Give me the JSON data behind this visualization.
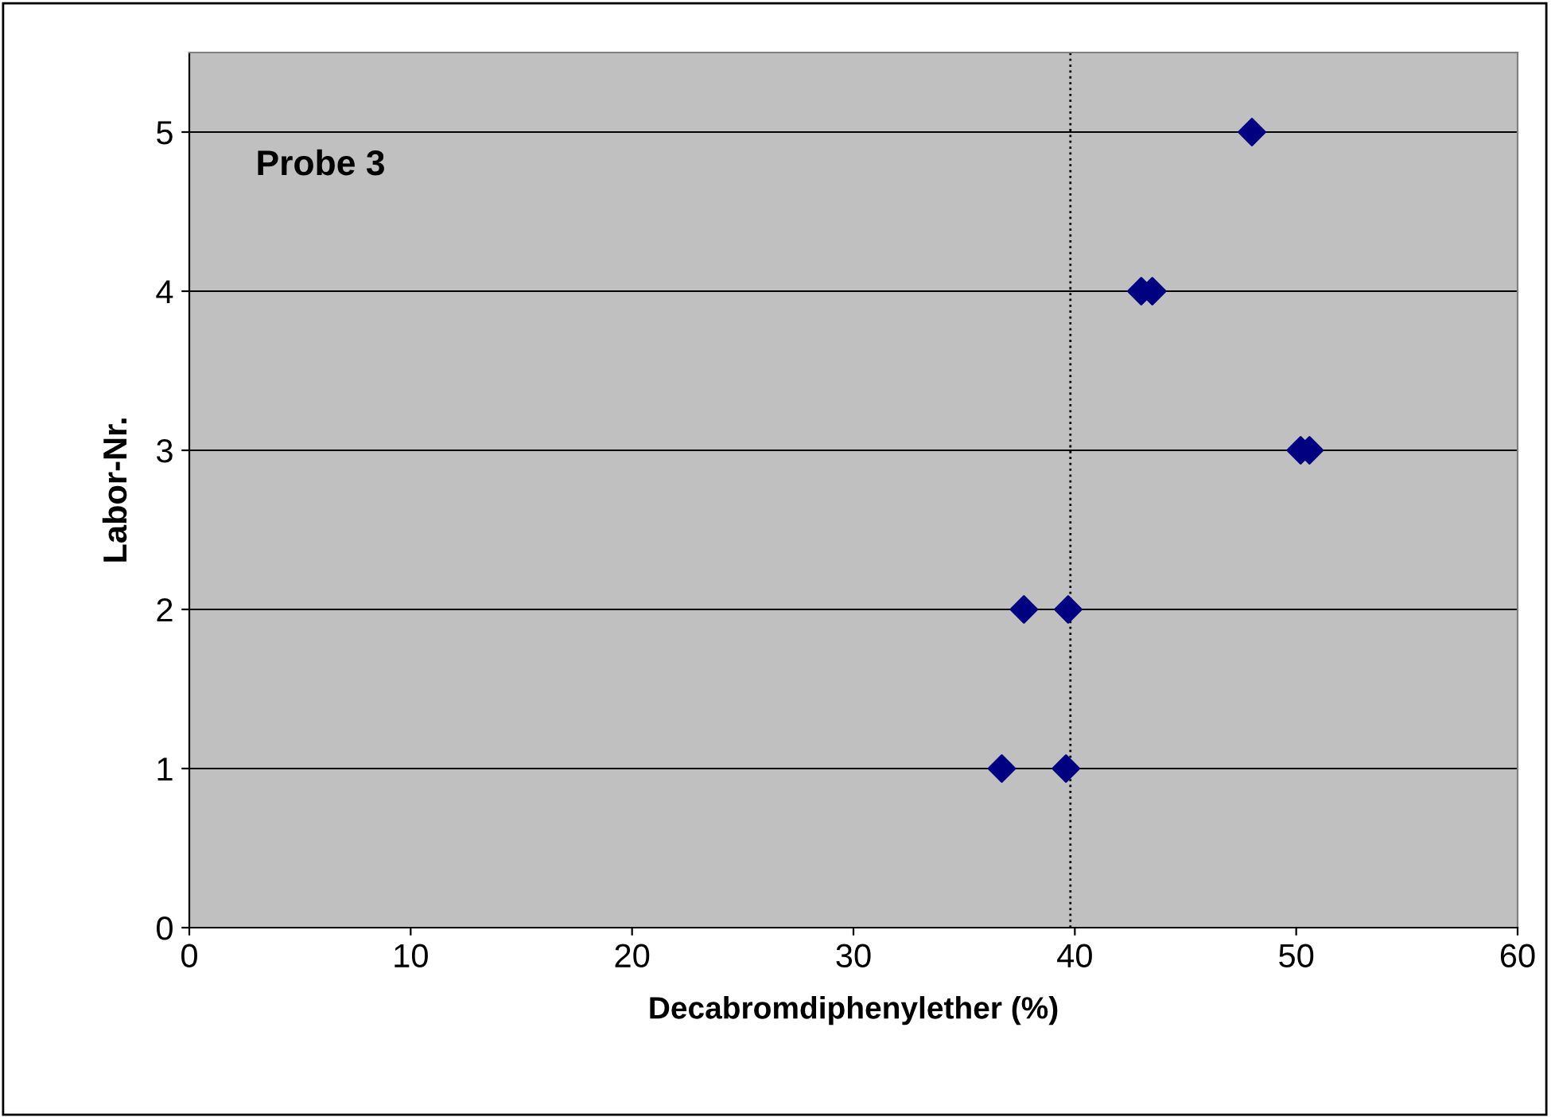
{
  "chart_data": {
    "type": "scatter",
    "xlabel": "Decabromdiphenylether (%)",
    "ylabel": "Labor-Nr.",
    "annotations": [
      "Probe 3"
    ],
    "series": [
      {
        "color": "#000080",
        "x": [
          48.0,
          43.0,
          43.5,
          50.2,
          50.6,
          37.7,
          39.7,
          36.7,
          39.6
        ],
        "values": [
          5,
          4,
          4,
          3,
          3,
          2,
          2,
          1,
          1
        ]
      }
    ],
    "xlim": [
      0,
      60
    ],
    "xticks": [
      0,
      10,
      20,
      30,
      40,
      50,
      60
    ],
    "ylim": [
      0,
      5.5
    ],
    "yticks": [
      0,
      1,
      2,
      3,
      4,
      5
    ],
    "grid": "y",
    "marker": "diamond",
    "legend": false,
    "ref_lines": [
      {
        "axis": "x",
        "value": 39.8,
        "label": null,
        "color": "#000000",
        "line_style": "dotted"
      }
    ]
  }
}
